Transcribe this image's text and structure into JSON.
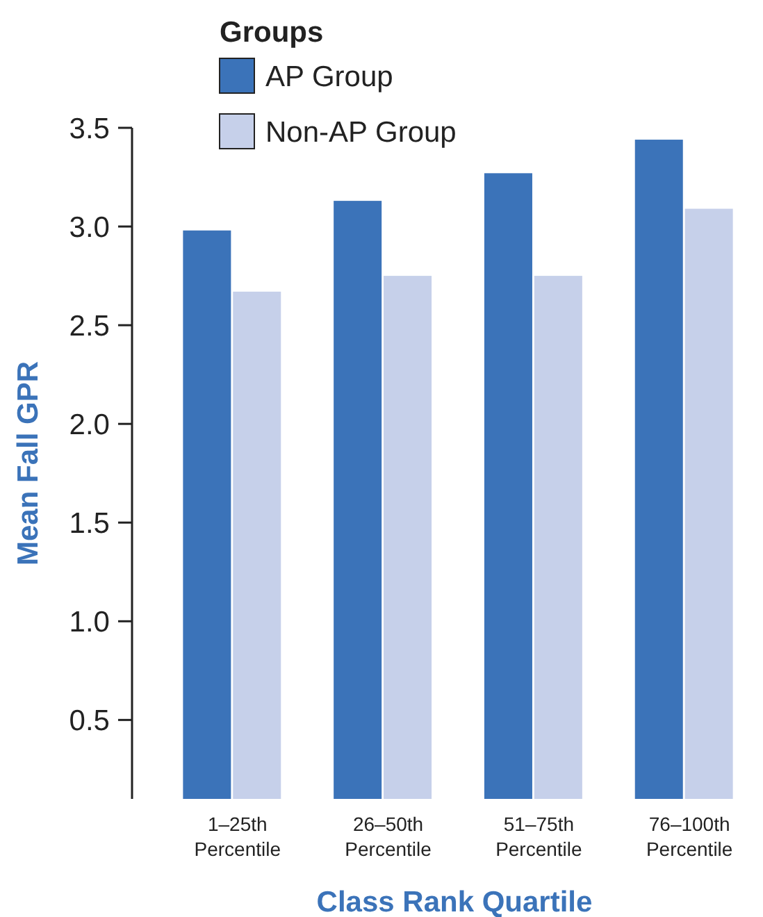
{
  "chart_data": {
    "type": "bar",
    "xlabel": "Class Rank Quartile",
    "ylabel": "Mean Fall GPR",
    "legend_title": "Groups",
    "legend": "top left",
    "categories": [
      "1–25th\nPercentile",
      "26–50th\nPercentile",
      "51–75th\nPercentile",
      "76–100th\nPercentile"
    ],
    "series": [
      {
        "name": "AP Group",
        "color": "#3b73b9",
        "values": [
          2.98,
          3.13,
          3.27,
          3.44
        ]
      },
      {
        "name": "Non-AP Group",
        "color": "#c6d0ea",
        "values": [
          2.67,
          2.75,
          2.75,
          3.09
        ]
      }
    ],
    "ylim": [
      0.1,
      3.5
    ],
    "yticks": [
      {
        "value": 0.5,
        "label": "0.5"
      },
      {
        "value": 1,
        "label": "1.0"
      },
      {
        "value": 1.5,
        "label": "1.5"
      },
      {
        "value": 2,
        "label": "2.0"
      },
      {
        "value": 2.5,
        "label": "2.5"
      },
      {
        "value": 3,
        "label": "3.0"
      },
      {
        "value": 3.5,
        "label": "3.5"
      }
    ],
    "grid": false
  }
}
